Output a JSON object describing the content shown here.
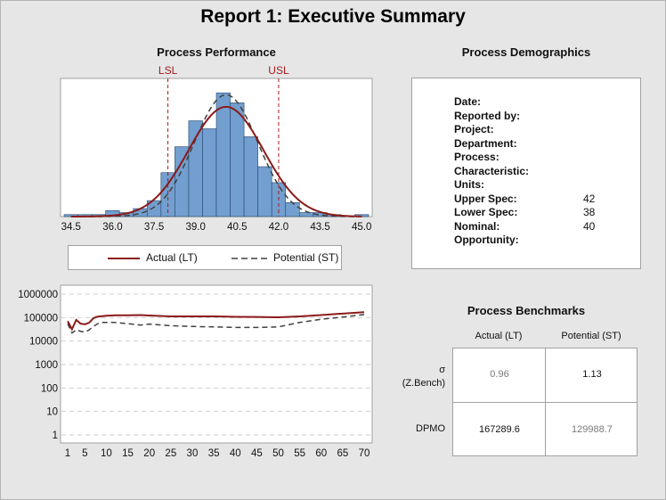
{
  "title": "Report 1: Executive Summary",
  "performance": {
    "title": "Process Performance",
    "lsl_label": "LSL",
    "usl_label": "USL",
    "legend": {
      "actual": "Actual (LT)",
      "potential": "Potential (ST)"
    }
  },
  "demographics": {
    "title": "Process Demographics",
    "rows": [
      {
        "label": "Date:",
        "value": ""
      },
      {
        "label": "Reported by:",
        "value": ""
      },
      {
        "label": "Project:",
        "value": ""
      },
      {
        "label": "Department:",
        "value": ""
      },
      {
        "label": "Process:",
        "value": ""
      },
      {
        "label": "Characteristic:",
        "value": ""
      },
      {
        "label": "Units:",
        "value": ""
      },
      {
        "label": "Upper Spec:",
        "value": "42"
      },
      {
        "label": "Lower Spec:",
        "value": "38"
      },
      {
        "label": "Nominal:",
        "value": "40"
      },
      {
        "label": "Opportunity:",
        "value": ""
      }
    ]
  },
  "benchmarks": {
    "title": "Process Benchmarks",
    "col_actual": "Actual (LT)",
    "col_potential": "Potential (ST)",
    "row_sigma": "σ",
    "row_sigma_sub": "(Z.Bench)",
    "row_dpmo": "DPMO",
    "sigma_actual": "0.96",
    "sigma_potential": "1.13",
    "dpmo_actual": "167289.6",
    "dpmo_potential": "129988.7"
  },
  "colors": {
    "bar_fill": "#729fcf",
    "bar_stroke": "#26456e",
    "actual_line": "#8b1a1a",
    "potential_line": "#404040",
    "spec_line": "#a51c1c"
  },
  "chart_data": [
    {
      "type": "bar",
      "name": "process-performance-histogram",
      "xlim": [
        34.25,
        45.25
      ],
      "ylim": [
        0,
        67
      ],
      "x_ticks": [
        34.5,
        36.0,
        37.5,
        39.0,
        40.5,
        42.0,
        43.5,
        45.0
      ],
      "x_tick_labels": [
        "34.5",
        "36.0",
        "37.5",
        "39.0",
        "40.5",
        "42.0",
        "43.5",
        "45.0"
      ],
      "bin_width": 0.5,
      "bin_starts": [
        34.25,
        34.75,
        35.25,
        35.75,
        36.25,
        36.75,
        37.25,
        37.75,
        38.25,
        38.75,
        39.25,
        39.75,
        40.25,
        40.75,
        41.25,
        41.75,
        42.25,
        42.75,
        43.25,
        43.75,
        44.25,
        44.75
      ],
      "counts": [
        1,
        1,
        1,
        3,
        2,
        4,
        8,
        22,
        35,
        48,
        44,
        62,
        57,
        40,
        25,
        17,
        7,
        2,
        2,
        1,
        0,
        1
      ],
      "lsl": 38,
      "usl": 42,
      "actual_curve": {
        "mean": 40.1,
        "sd": 1.35,
        "peak": 55
      },
      "potential_curve": {
        "mean": 40.1,
        "sd": 1.15,
        "peak": 61
      }
    },
    {
      "type": "line",
      "name": "dpmo-trend",
      "yscale": "log",
      "ylim": [
        1,
        1000000
      ],
      "y_ticks": [
        1,
        10,
        100,
        1000,
        10000,
        100000,
        1000000
      ],
      "y_tick_labels": [
        "1",
        "10",
        "100",
        "1000",
        "10000",
        "100000",
        "1000000"
      ],
      "xlim": [
        0,
        71
      ],
      "x_ticks": [
        1,
        5,
        10,
        15,
        20,
        25,
        30,
        35,
        40,
        45,
        50,
        55,
        60,
        65,
        70
      ],
      "x_tick_labels": [
        "1",
        "5",
        "10",
        "15",
        "20",
        "25",
        "30",
        "35",
        "40",
        "45",
        "50",
        "55",
        "60",
        "65",
        "70"
      ],
      "grid": true,
      "series": [
        {
          "name": "Actual (LT)",
          "x": [
            1,
            2,
            3,
            4,
            5,
            6,
            7,
            8,
            9,
            10,
            12,
            15,
            18,
            20,
            25,
            30,
            35,
            40,
            45,
            50,
            55,
            60,
            65,
            70
          ],
          "y": [
            70000,
            32000,
            80000,
            55000,
            52000,
            60000,
            95000,
            110000,
            115000,
            120000,
            125000,
            125000,
            128000,
            122000,
            112000,
            112000,
            112000,
            108000,
            106000,
            103000,
            112000,
            128000,
            148000,
            170000
          ]
        },
        {
          "name": "Potential (ST)",
          "x": [
            1,
            2,
            3,
            4,
            5,
            6,
            7,
            8,
            9,
            10,
            12,
            15,
            18,
            20,
            25,
            30,
            35,
            40,
            45,
            50,
            55,
            60,
            65,
            70
          ],
          "y": [
            55000,
            22000,
            30000,
            26000,
            24000,
            30000,
            42000,
            55000,
            62000,
            62000,
            62000,
            55000,
            48000,
            53000,
            45000,
            42000,
            40000,
            38000,
            38000,
            40000,
            62000,
            85000,
            105000,
            135000
          ]
        }
      ]
    }
  ]
}
